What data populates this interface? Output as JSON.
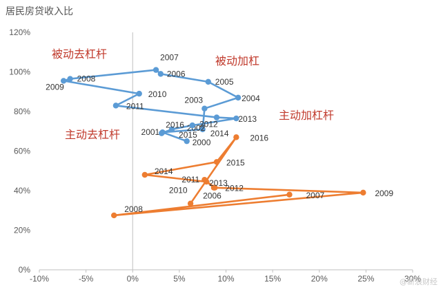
{
  "title": "居民房贷收入比",
  "watermark": "@新浪财经",
  "chart_data": {
    "type": "scatter",
    "title": "居民房贷收入比",
    "x_axis": {
      "min": -0.1,
      "max": 0.3,
      "ticks": [
        "-10%",
        "-5%",
        "0%",
        "5%",
        "10%",
        "15%",
        "20%",
        "25%",
        "30%"
      ]
    },
    "y_axis": {
      "min": 0,
      "max": 1.2,
      "ticks": [
        "0%",
        "20%",
        "40%",
        "60%",
        "80%",
        "100%",
        "120%"
      ]
    },
    "grid": false,
    "quadrant_labels": [
      "被动去杠杆",
      "被动加杠",
      "主动加杠杆",
      "主动去杠杆"
    ],
    "series": [
      {
        "color": "#5b9bd5",
        "points": [
          {
            "year": "2000",
            "x": 0.058,
            "y": 0.65
          },
          {
            "year": "2001",
            "x": 0.032,
            "y": 0.695
          },
          {
            "year": "2002",
            "x": 0.075,
            "y": 0.71
          },
          {
            "year": "2003",
            "x": 0.077,
            "y": 0.815
          },
          {
            "year": "2004",
            "x": 0.113,
            "y": 0.87
          },
          {
            "year": "2005",
            "x": 0.081,
            "y": 0.95
          },
          {
            "year": "2006",
            "x": 0.03,
            "y": 0.99
          },
          {
            "year": "2007",
            "x": 0.025,
            "y": 1.01
          },
          {
            "year": "2008",
            "x": -0.067,
            "y": 0.965
          },
          {
            "year": "2009",
            "x": -0.074,
            "y": 0.955
          },
          {
            "year": "2010",
            "x": 0.007,
            "y": 0.89
          },
          {
            "year": "2011",
            "x": -0.018,
            "y": 0.83
          },
          {
            "year": "2012",
            "x": 0.09,
            "y": 0.77
          },
          {
            "year": "2013",
            "x": 0.111,
            "y": 0.765
          },
          {
            "year": "2014",
            "x": 0.064,
            "y": 0.73
          },
          {
            "year": "2015",
            "x": 0.042,
            "y": 0.71
          },
          {
            "year": "2016",
            "x": 0.031,
            "y": 0.69
          }
        ]
      },
      {
        "color": "#ed7d31",
        "points": [
          {
            "year": "2007",
            "x": 0.168,
            "y": 0.38
          },
          {
            "year": "2008",
            "x": -0.02,
            "y": 0.275
          },
          {
            "year": "2009",
            "x": 0.247,
            "y": 0.39
          },
          {
            "year": "2010",
            "x": 0.087,
            "y": 0.415
          },
          {
            "year": "2011",
            "x": 0.077,
            "y": 0.455
          },
          {
            "year": "2012",
            "x": 0.088,
            "y": 0.415
          },
          {
            "year": "2013",
            "x": 0.079,
            "y": 0.445
          },
          {
            "year": "2014",
            "x": 0.013,
            "y": 0.48
          },
          {
            "year": "2015",
            "x": 0.09,
            "y": 0.545
          },
          {
            "year": "2016",
            "x": 0.111,
            "y": 0.67
          },
          {
            "year": "2006",
            "x": 0.062,
            "y": 0.335
          }
        ]
      }
    ]
  }
}
